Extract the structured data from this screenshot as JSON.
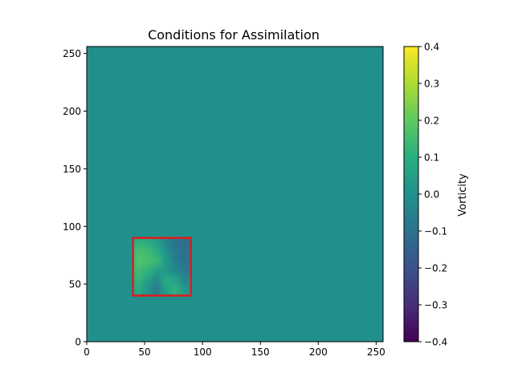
{
  "chart_data": {
    "type": "heatmap",
    "title": "Conditions for Assimilation",
    "xlim": [
      0,
      256
    ],
    "ylim": [
      0,
      256
    ],
    "x_ticks": [
      0,
      50,
      100,
      150,
      200,
      250
    ],
    "y_ticks": [
      0,
      50,
      100,
      150,
      200,
      250
    ],
    "x_tick_labels": [
      "0",
      "50",
      "100",
      "150",
      "200",
      "250"
    ],
    "y_tick_labels": [
      "0",
      "50",
      "100",
      "150",
      "200",
      "250"
    ],
    "background_value": 0.0,
    "colormap": "viridis",
    "highlight_box": {
      "x_range": [
        40,
        90
      ],
      "y_range": [
        40,
        90
      ],
      "color": "#e31a1c"
    },
    "box_field_samples": [
      [
        0.12,
        0.1,
        0.06,
        -0.04,
        -0.1,
        -0.12
      ],
      [
        0.16,
        0.15,
        0.1,
        0.0,
        -0.08,
        -0.11
      ],
      [
        0.18,
        0.17,
        0.14,
        0.04,
        -0.06,
        -0.1
      ],
      [
        0.15,
        0.12,
        0.05,
        0.02,
        -0.03,
        -0.08
      ],
      [
        0.13,
        0.06,
        -0.04,
        0.1,
        0.06,
        -0.04
      ],
      [
        0.1,
        0.02,
        -0.08,
        0.05,
        0.12,
        0.02
      ]
    ],
    "grid": false,
    "colorbar": {
      "label": "Vorticity",
      "range": [
        -0.4,
        0.4
      ],
      "ticks": [
        0.4,
        0.3,
        0.2,
        0.1,
        0.0,
        -0.1,
        -0.2,
        -0.3,
        -0.4
      ],
      "tick_labels": [
        "0.4",
        "0.3",
        "0.2",
        "0.1",
        "0.0",
        "−0.1",
        "−0.2",
        "−0.3",
        "−0.4"
      ]
    },
    "colors": {
      "background": "#21918c",
      "box_outline": "#e31a1c"
    }
  }
}
